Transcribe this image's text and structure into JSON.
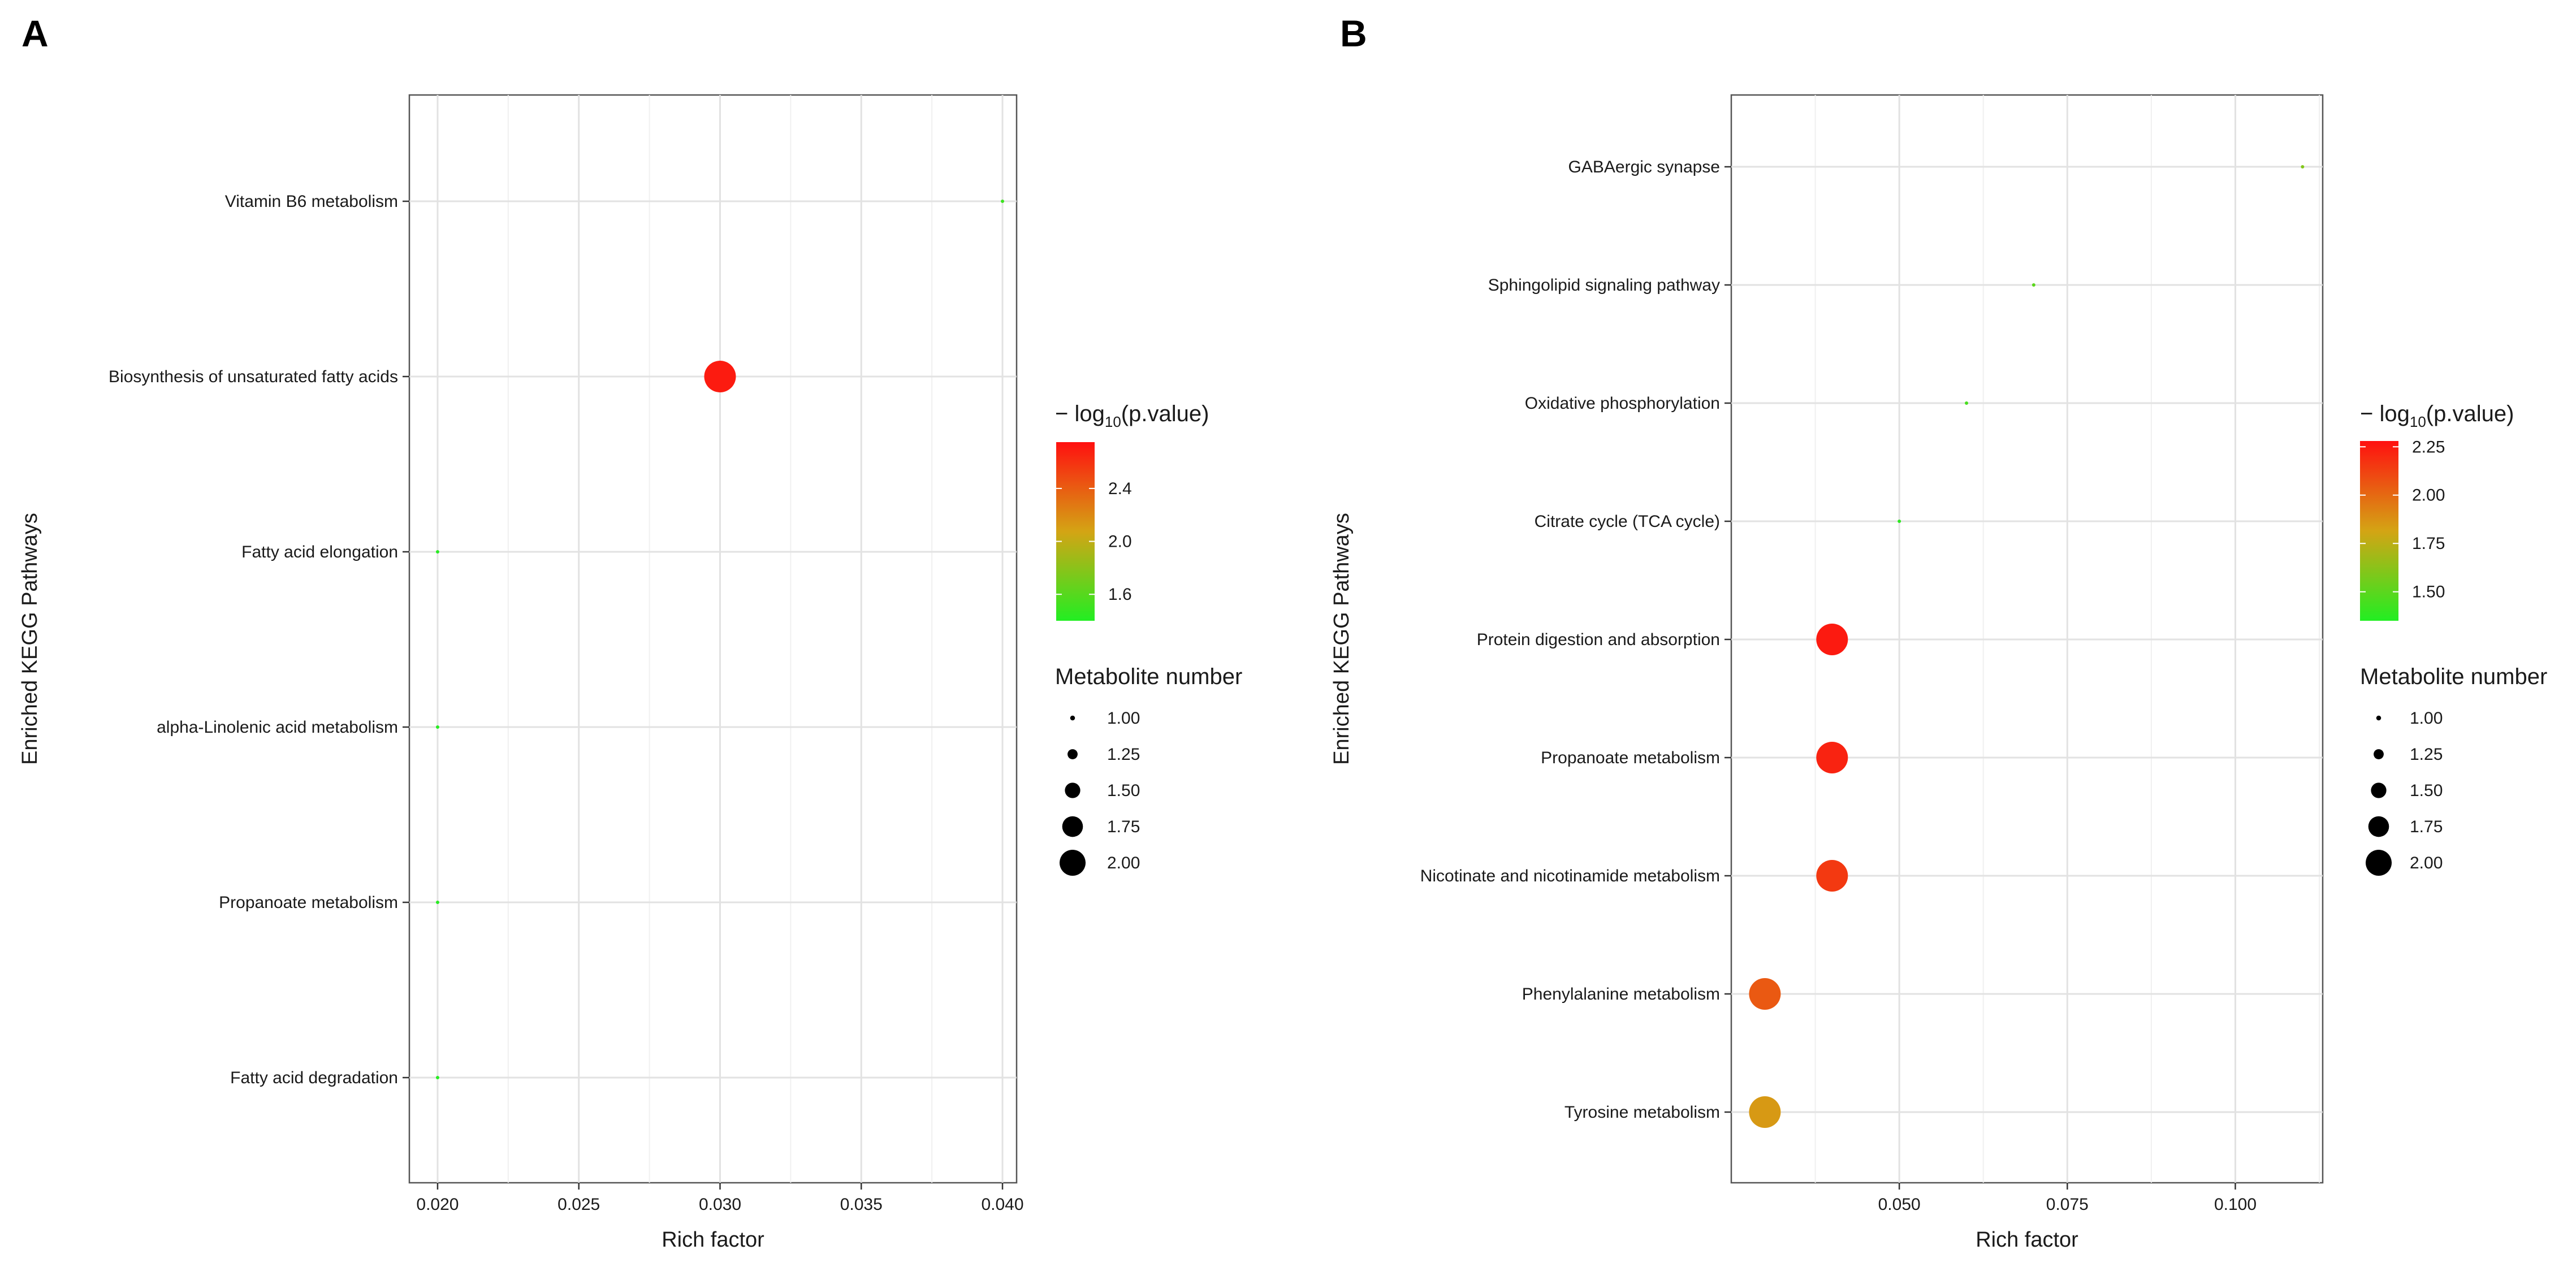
{
  "chart_data": [
    {
      "panel": "A",
      "type": "scatter",
      "xlabel": "Rich factor",
      "ylabel": "Enriched KEGG Pathways",
      "xlim": [
        0.019,
        0.0405
      ],
      "xticks": [
        0.02,
        0.025,
        0.03,
        0.035,
        0.04
      ],
      "xtick_labels": [
        "0.020",
        "0.025",
        "0.030",
        "0.035",
        "0.040"
      ],
      "categories": [
        "Vitamin B6 metabolism",
        "Biosynthesis of unsaturated fatty acids",
        "Fatty acid elongation",
        "alpha-Linolenic acid metabolism",
        "Propanoate metabolism",
        "Fatty acid degradation"
      ],
      "points": [
        {
          "pathway": "Vitamin B6 metabolism",
          "rich_factor": 0.04,
          "neg_log10_p": 1.5,
          "metabolite_number": 1
        },
        {
          "pathway": "Biosynthesis of unsaturated fatty acids",
          "rich_factor": 0.03,
          "neg_log10_p": 2.7,
          "metabolite_number": 2
        },
        {
          "pathway": "Fatty acid elongation",
          "rich_factor": 0.02,
          "neg_log10_p": 1.42,
          "metabolite_number": 1
        },
        {
          "pathway": "alpha-Linolenic acid metabolism",
          "rich_factor": 0.02,
          "neg_log10_p": 1.42,
          "metabolite_number": 1
        },
        {
          "pathway": "Propanoate metabolism",
          "rich_factor": 0.02,
          "neg_log10_p": 1.42,
          "metabolite_number": 1
        },
        {
          "pathway": "Fatty acid degradation",
          "rich_factor": 0.02,
          "neg_log10_p": 1.42,
          "metabolite_number": 1
        }
      ],
      "color_legend": {
        "title_prefix": "− log",
        "title_sub": "10",
        "title_suffix": "(p.value)",
        "range": [
          1.4,
          2.75
        ],
        "ticks": [
          1.6,
          2.0,
          2.4
        ],
        "tick_labels": [
          "1.6",
          "2.0",
          "2.4"
        ],
        "low_color": "#22ee22",
        "mid_color": "#d4a414",
        "high_color": "#ff1010"
      },
      "size_legend": {
        "title": "Metabolite number",
        "values": [
          1.0,
          1.25,
          1.5,
          1.75,
          2.0
        ],
        "labels": [
          "1.00",
          "1.25",
          "1.50",
          "1.75",
          "2.00"
        ]
      }
    },
    {
      "panel": "B",
      "type": "scatter",
      "xlabel": "Rich factor",
      "ylabel": "Enriched KEGG Pathways",
      "xlim": [
        0.025,
        0.113
      ],
      "xticks": [
        0.05,
        0.075,
        0.1
      ],
      "xtick_labels": [
        "0.050",
        "0.075",
        "0.100"
      ],
      "categories": [
        "GABAergic synapse",
        "Sphingolipid signaling pathway",
        "Oxidative phosphorylation",
        "Citrate cycle (TCA cycle)",
        "Protein digestion and absorption",
        "Propanoate metabolism",
        "Nicotinate and nicotinamide metabolism",
        "Phenylalanine metabolism",
        "Tyrosine metabolism"
      ],
      "points": [
        {
          "pathway": "GABAergic synapse",
          "rich_factor": 0.11,
          "neg_log10_p": 1.6,
          "metabolite_number": 1
        },
        {
          "pathway": "Sphingolipid signaling pathway",
          "rich_factor": 0.07,
          "neg_log10_p": 1.5,
          "metabolite_number": 1
        },
        {
          "pathway": "Oxidative phosphorylation",
          "rich_factor": 0.06,
          "neg_log10_p": 1.45,
          "metabolite_number": 1
        },
        {
          "pathway": "Citrate cycle (TCA cycle)",
          "rich_factor": 0.05,
          "neg_log10_p": 1.38,
          "metabolite_number": 1
        },
        {
          "pathway": "Protein digestion and absorption",
          "rich_factor": 0.04,
          "neg_log10_p": 2.25,
          "metabolite_number": 2
        },
        {
          "pathway": "Propanoate metabolism",
          "rich_factor": 0.04,
          "neg_log10_p": 2.22,
          "metabolite_number": 2
        },
        {
          "pathway": "Nicotinate and nicotinamide metabolism",
          "rich_factor": 0.04,
          "neg_log10_p": 2.15,
          "metabolite_number": 2
        },
        {
          "pathway": "Phenylalanine metabolism",
          "rich_factor": 0.03,
          "neg_log10_p": 2.05,
          "metabolite_number": 2
        },
        {
          "pathway": "Tyrosine metabolism",
          "rich_factor": 0.03,
          "neg_log10_p": 1.85,
          "metabolite_number": 2
        }
      ],
      "color_legend": {
        "title_prefix": "− log",
        "title_sub": "10",
        "title_suffix": "(p.value)",
        "range": [
          1.35,
          2.28
        ],
        "ticks": [
          1.5,
          1.75,
          2.0,
          2.25
        ],
        "tick_labels": [
          "1.50",
          "1.75",
          "2.00",
          "2.25"
        ],
        "low_color": "#22ee22",
        "mid_color": "#d4a414",
        "high_color": "#ff1010"
      },
      "size_legend": {
        "title": "Metabolite number",
        "values": [
          1.0,
          1.25,
          1.5,
          1.75,
          2.0
        ],
        "labels": [
          "1.00",
          "1.25",
          "1.50",
          "1.75",
          "2.00"
        ]
      }
    }
  ]
}
